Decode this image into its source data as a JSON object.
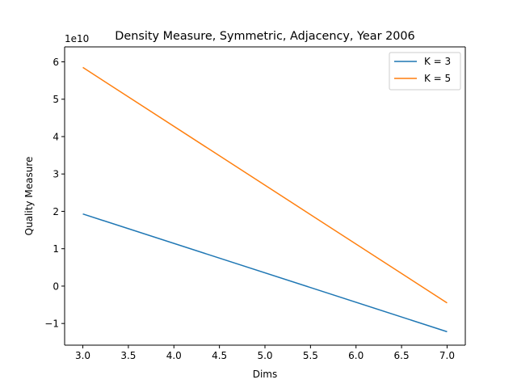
{
  "chart_data": {
    "type": "line",
    "title": "Density Measure, Symmetric, Adjacency, Year 2006",
    "xlabel": "Dims",
    "ylabel": "Quality Measure",
    "y_offset_label": "1e10",
    "xlim": [
      2.8,
      7.2
    ],
    "ylim": [
      -1.58,
      6.4
    ],
    "x_ticks": [
      3.0,
      3.5,
      4.0,
      4.5,
      5.0,
      5.5,
      6.0,
      6.5,
      7.0
    ],
    "x_tick_labels": [
      "3.0",
      "3.5",
      "4.0",
      "4.5",
      "5.0",
      "5.5",
      "6.0",
      "6.5",
      "7.0"
    ],
    "y_ticks": [
      -1,
      0,
      1,
      2,
      3,
      4,
      5,
      6
    ],
    "y_tick_labels": [
      "−1",
      "0",
      "1",
      "2",
      "3",
      "4",
      "5",
      "6"
    ],
    "grid": false,
    "legend_position": "top-right",
    "series": [
      {
        "name": "K = 3",
        "color": "#1f77b4",
        "x": [
          3.0,
          7.0
        ],
        "y": [
          1.93,
          -1.22
        ]
      },
      {
        "name": "K = 5",
        "color": "#ff7f0e",
        "x": [
          3.0,
          7.0
        ],
        "y": [
          5.85,
          -0.45
        ]
      }
    ]
  }
}
